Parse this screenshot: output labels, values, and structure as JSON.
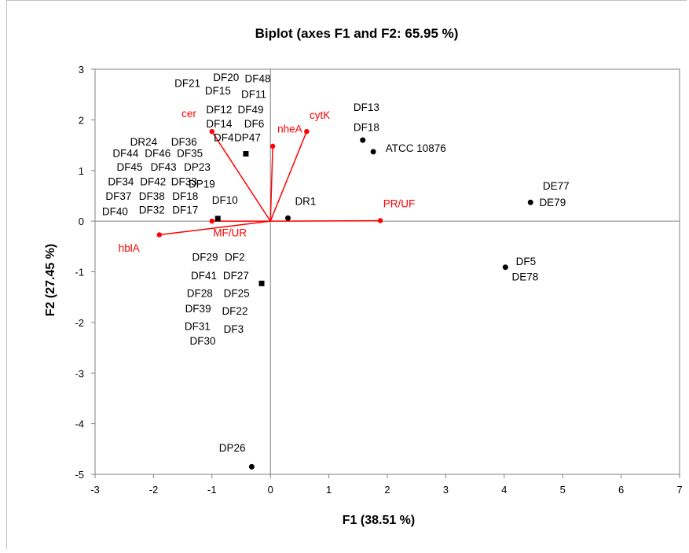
{
  "chart_data": {
    "type": "scatter",
    "title": "Biplot (axes F1 and  F2: 65.95 %)",
    "xlabel": "F1 (38.51 %)",
    "ylabel": "F2 (27.45 %)",
    "xlim": [
      -3,
      7
    ],
    "ylim": [
      -5,
      3
    ],
    "xticks": [
      "-3",
      "-2",
      "-1",
      "0",
      "1",
      "2",
      "3",
      "4",
      "5",
      "6",
      "7"
    ],
    "yticks": [
      "3",
      "2",
      "1",
      "0",
      "-1",
      "-2",
      "-3",
      "-4",
      "-5"
    ],
    "grid": false,
    "colors": {
      "observations": "#000000",
      "variables": "#ff0000"
    },
    "observation_points": [
      {
        "x": 1.58,
        "y": 1.6,
        "marker": "circle"
      },
      {
        "x": 1.76,
        "y": 1.37,
        "marker": "circle"
      },
      {
        "x": 4.45,
        "y": 0.37,
        "marker": "circle"
      },
      {
        "x": 4.02,
        "y": -0.91,
        "marker": "circle"
      },
      {
        "x": 0.3,
        "y": 0.06,
        "marker": "circle"
      },
      {
        "x": -0.32,
        "y": -4.85,
        "marker": "circle"
      },
      {
        "x": -0.42,
        "y": 1.33,
        "marker": "square"
      },
      {
        "x": -0.9,
        "y": 0.05,
        "marker": "square"
      },
      {
        "x": -0.15,
        "y": -1.23,
        "marker": "square"
      }
    ],
    "observation_labels": [
      {
        "text": "DF20",
        "x": -0.98,
        "y": 2.77
      },
      {
        "text": "DF48",
        "x": -0.44,
        "y": 2.74
      },
      {
        "text": "DF21",
        "x": -1.64,
        "y": 2.65
      },
      {
        "text": "DF15",
        "x": -1.12,
        "y": 2.5
      },
      {
        "text": "DF11",
        "x": -0.5,
        "y": 2.43
      },
      {
        "text": "DF12",
        "x": -1.1,
        "y": 2.13
      },
      {
        "text": "DF49",
        "x": -0.56,
        "y": 2.13
      },
      {
        "text": "DF14",
        "x": -1.1,
        "y": 1.85
      },
      {
        "text": "DF6",
        "x": -0.45,
        "y": 1.85
      },
      {
        "text": "DF4",
        "x": -0.97,
        "y": 1.58
      },
      {
        "text": "DP47",
        "x": -0.62,
        "y": 1.58
      },
      {
        "text": "DR24",
        "x": -2.4,
        "y": 1.49
      },
      {
        "text": "DF36",
        "x": -1.7,
        "y": 1.49
      },
      {
        "text": "DF44",
        "x": -2.7,
        "y": 1.27
      },
      {
        "text": "DF46",
        "x": -2.15,
        "y": 1.27
      },
      {
        "text": "DF35",
        "x": -1.6,
        "y": 1.27
      },
      {
        "text": "DF45",
        "x": -2.63,
        "y": 1.0
      },
      {
        "text": "DF43",
        "x": -2.05,
        "y": 1.0
      },
      {
        "text": "DP23",
        "x": -1.48,
        "y": 1.0
      },
      {
        "text": "DF34",
        "x": -2.78,
        "y": 0.71
      },
      {
        "text": "DF42",
        "x": -2.23,
        "y": 0.71
      },
      {
        "text": "DF33",
        "x": -1.7,
        "y": 0.71
      },
      {
        "text": "DP19",
        "x": -1.4,
        "y": 0.66
      },
      {
        "text": "DF37",
        "x": -2.82,
        "y": 0.42
      },
      {
        "text": "DF38",
        "x": -2.25,
        "y": 0.42
      },
      {
        "text": "DF18",
        "x": -1.68,
        "y": 0.42
      },
      {
        "text": "DF10",
        "x": -1.0,
        "y": 0.34
      },
      {
        "text": "DF40",
        "x": -2.88,
        "y": 0.12
      },
      {
        "text": "DF32",
        "x": -2.25,
        "y": 0.15
      },
      {
        "text": "DF17",
        "x": -1.68,
        "y": 0.15
      },
      {
        "text": "DR1",
        "x": 0.42,
        "y": 0.32
      },
      {
        "text": "DF13",
        "x": 1.42,
        "y": 2.18
      },
      {
        "text": "DF18",
        "x": 1.42,
        "y": 1.78
      },
      {
        "text": "ATCC 10876",
        "x": 1.97,
        "y": 1.37
      },
      {
        "text": "DE77",
        "x": 4.66,
        "y": 0.62
      },
      {
        "text": "DE79",
        "x": 4.6,
        "y": 0.3
      },
      {
        "text": "DF5",
        "x": 4.2,
        "y": -0.87
      },
      {
        "text": "DE78",
        "x": 4.13,
        "y": -1.17
      },
      {
        "text": "DF29",
        "x": -1.34,
        "y": -0.78
      },
      {
        "text": "DF2",
        "x": -0.78,
        "y": -0.78
      },
      {
        "text": "DF41",
        "x": -1.36,
        "y": -1.15
      },
      {
        "text": "DF27",
        "x": -0.81,
        "y": -1.15
      },
      {
        "text": "DF28",
        "x": -1.43,
        "y": -1.5
      },
      {
        "text": "DF25",
        "x": -0.8,
        "y": -1.5
      },
      {
        "text": "DF39",
        "x": -1.46,
        "y": -1.8
      },
      {
        "text": "DF22",
        "x": -0.83,
        "y": -1.85
      },
      {
        "text": "DF31",
        "x": -1.47,
        "y": -2.15
      },
      {
        "text": "DF3",
        "x": -0.8,
        "y": -2.2
      },
      {
        "text": "DF30",
        "x": -1.38,
        "y": -2.44
      },
      {
        "text": "DP26",
        "x": -0.88,
        "y": -4.55
      }
    ],
    "variables": [
      {
        "name": "cer",
        "x": -1.0,
        "y": 1.77,
        "label_x": -1.52,
        "label_y": 2.05
      },
      {
        "name": "nheA",
        "x": 0.04,
        "y": 1.48,
        "label_x": 0.12,
        "label_y": 1.75
      },
      {
        "name": "cytK",
        "x": 0.62,
        "y": 1.77,
        "label_x": 0.67,
        "label_y": 2.02
      },
      {
        "name": "PR/UF",
        "x": 1.88,
        "y": 0.01,
        "label_x": 1.93,
        "label_y": 0.27
      },
      {
        "name": "hblA",
        "x": -1.9,
        "y": -0.27,
        "label_x": -2.6,
        "label_y": -0.6
      },
      {
        "name": "MF/UR",
        "x": -1.0,
        "y": 0.0,
        "label_x": -0.98,
        "label_y": -0.3
      }
    ]
  }
}
